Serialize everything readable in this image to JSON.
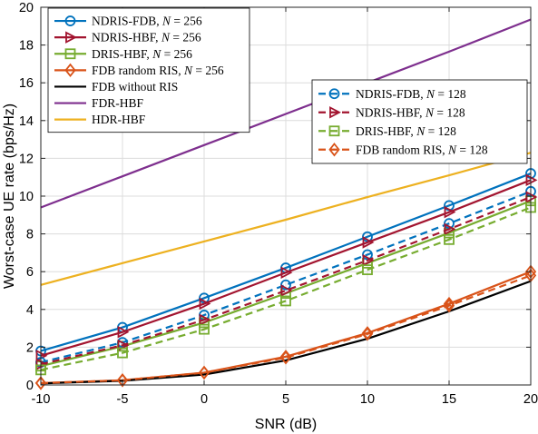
{
  "chart_data": {
    "type": "line",
    "xlabel": "SNR (dB)",
    "ylabel": "Worst-case UE rate (bps/Hz)",
    "xlim": [
      -10,
      20
    ],
    "ylim": [
      0,
      20
    ],
    "xticks": [
      "-10",
      "-5",
      "0",
      "5",
      "10",
      "15",
      "20"
    ],
    "yticks": [
      "0",
      "2",
      "4",
      "6",
      "8",
      "10",
      "12",
      "14",
      "16",
      "18",
      "20"
    ],
    "grid": true,
    "x": [
      -10,
      -5,
      0,
      5,
      10,
      15,
      20
    ],
    "series": [
      {
        "name": "NDRIS-FDB, N = 256",
        "label_main": "NDRIS-FDB, ",
        "label_math": "N",
        "label_tail": " = 256",
        "color": "#0072BD",
        "dash": "solid",
        "marker": "circle",
        "values": [
          1.8,
          3.05,
          4.6,
          6.2,
          7.85,
          9.5,
          11.2
        ]
      },
      {
        "name": "NDRIS-HBF, N = 256",
        "label_main": "NDRIS-HBF, ",
        "label_math": "N",
        "label_tail": " = 256",
        "color": "#A2142F",
        "dash": "solid",
        "marker": "triangle-right",
        "values": [
          1.55,
          2.8,
          4.3,
          5.95,
          7.55,
          9.15,
          10.85
        ]
      },
      {
        "name": "DRIS-HBF, N = 256",
        "label_main": "DRIS-HBF, ",
        "label_math": "N",
        "label_tail": " = 256",
        "color": "#77AC30",
        "dash": "solid",
        "marker": "square",
        "values": [
          1.0,
          2.05,
          3.3,
          4.85,
          6.45,
          8.05,
          9.75
        ]
      },
      {
        "name": "FDB random RIS, N = 256",
        "label_main": "FDB random RIS, ",
        "label_math": "N",
        "label_tail": " = 256",
        "color": "#D95319",
        "dash": "solid",
        "marker": "diamond",
        "values": [
          0.1,
          0.25,
          0.65,
          1.5,
          2.75,
          4.3,
          6.0
        ]
      },
      {
        "name": "FDB without RIS",
        "label_main": "FDB without RIS",
        "label_math": "",
        "label_tail": "",
        "color": "#000000",
        "dash": "solid",
        "marker": "none",
        "values": [
          0.08,
          0.22,
          0.55,
          1.3,
          2.45,
          3.9,
          5.5
        ]
      },
      {
        "name": "FDR-HBF",
        "label_main": "FDR-HBF",
        "label_math": "",
        "label_tail": "",
        "color": "#7E2F8E",
        "dash": "solid",
        "marker": "none",
        "values": [
          9.4,
          11.05,
          12.7,
          14.35,
          16.0,
          17.65,
          19.35
        ]
      },
      {
        "name": "HDR-HBF",
        "label_main": "HDR-HBF",
        "label_math": "",
        "label_tail": "",
        "color": "#EDB120",
        "dash": "solid",
        "marker": "none",
        "values": [
          5.3,
          6.45,
          7.6,
          8.75,
          9.95,
          11.1,
          12.3
        ]
      },
      {
        "name": "NDRIS-FDB, N = 128",
        "label_main": "NDRIS-FDB, ",
        "label_math": "N",
        "label_tail": " = 128",
        "color": "#0072BD",
        "dash": "dashed",
        "marker": "circle",
        "values": [
          1.2,
          2.25,
          3.7,
          5.3,
          6.9,
          8.55,
          10.25
        ]
      },
      {
        "name": "NDRIS-HBF, N = 128",
        "label_main": "NDRIS-HBF, ",
        "label_math": "N",
        "label_tail": " = 128",
        "color": "#A2142F",
        "dash": "dashed",
        "marker": "triangle-right",
        "values": [
          1.1,
          2.1,
          3.45,
          5.0,
          6.6,
          8.25,
          9.95
        ]
      },
      {
        "name": "DRIS-HBF, N = 128",
        "label_main": "DRIS-HBF, ",
        "label_math": "N",
        "label_tail": " = 128",
        "color": "#77AC30",
        "dash": "dashed",
        "marker": "square",
        "values": [
          0.8,
          1.7,
          2.95,
          4.45,
          6.1,
          7.7,
          9.4
        ]
      },
      {
        "name": "FDB random RIS, N = 128",
        "label_main": "FDB random RIS, ",
        "label_math": "N",
        "label_tail": " = 128",
        "color": "#D95319",
        "dash": "dashed",
        "marker": "diamond",
        "values": [
          0.1,
          0.25,
          0.65,
          1.45,
          2.7,
          4.2,
          5.8
        ]
      }
    ],
    "legends": [
      {
        "position": "top-left",
        "series_indices": [
          0,
          1,
          2,
          3,
          4,
          5,
          6
        ]
      },
      {
        "position": "center-right",
        "series_indices": [
          7,
          8,
          9,
          10
        ]
      }
    ]
  }
}
